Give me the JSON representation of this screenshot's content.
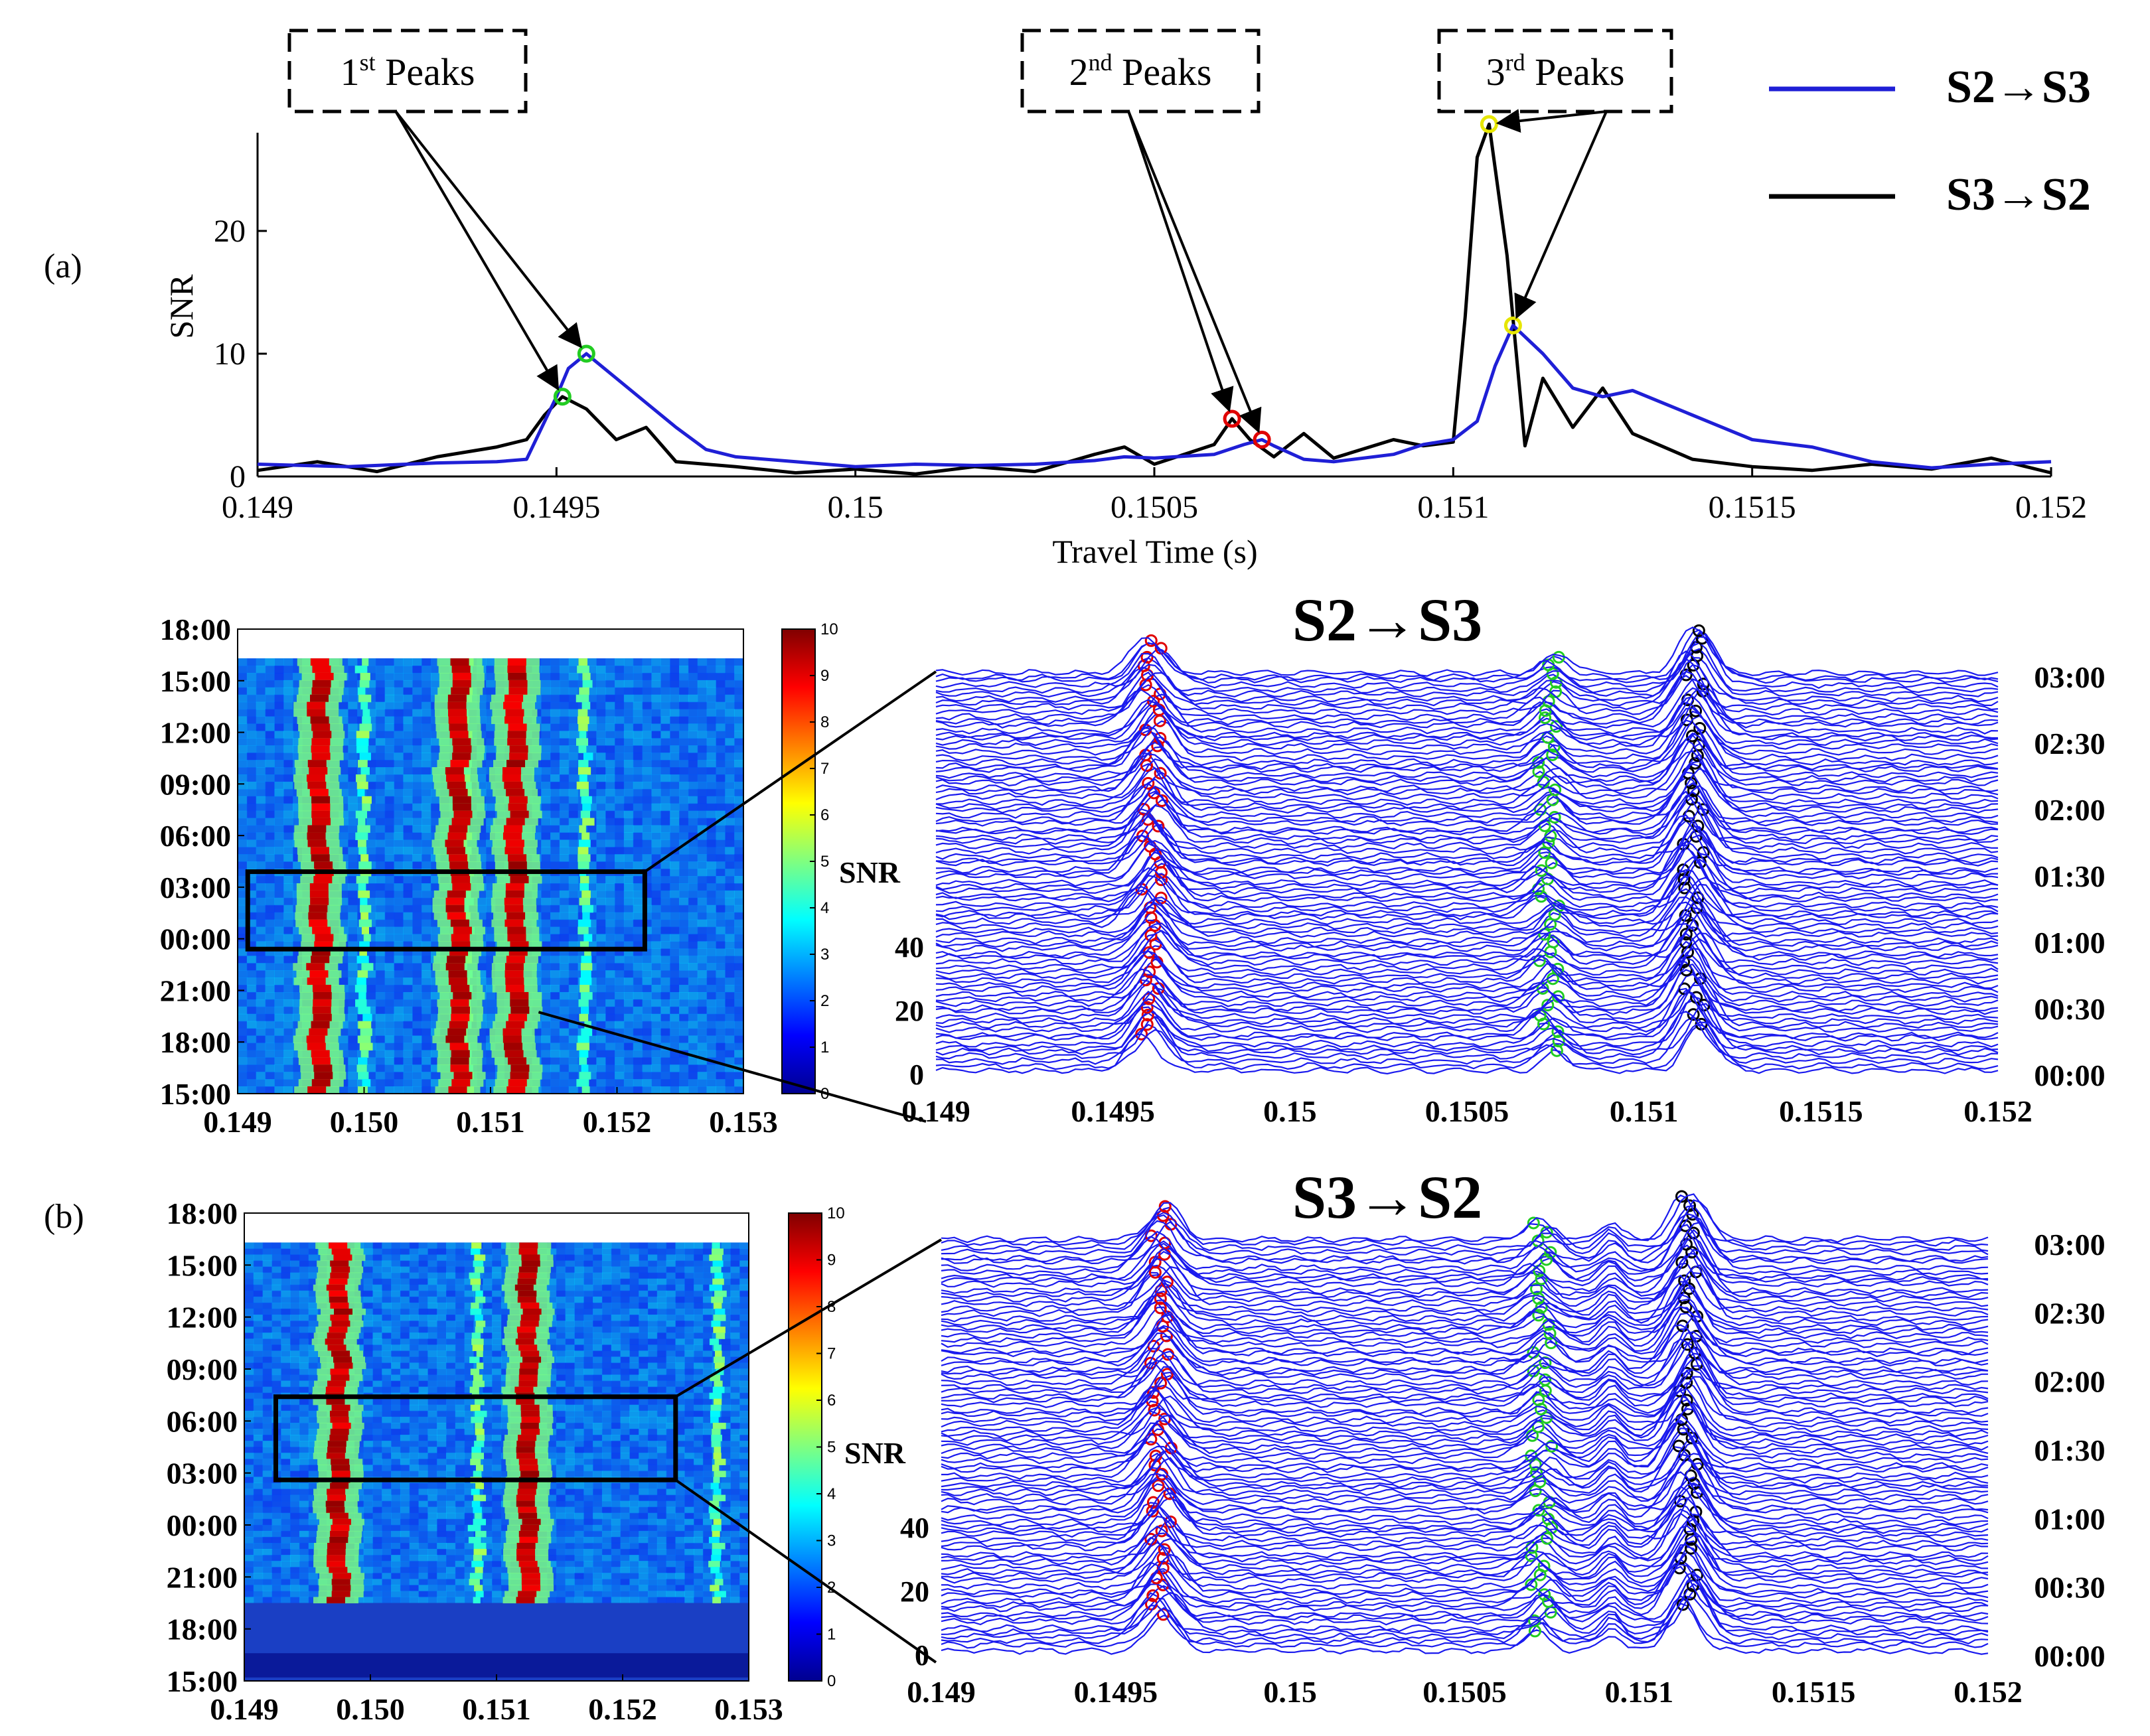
{
  "figure": {
    "panel_a_label": "(a)",
    "panel_b_label": "(b)"
  },
  "chart_data": [
    {
      "id": "a-snr-trace",
      "type": "line",
      "title": "",
      "xlabel": "Travel Time (s)",
      "ylabel": "SNR",
      "xlim": [
        0.149,
        0.152
      ],
      "ylim": [
        0,
        28
      ],
      "xticks": [
        0.149,
        0.1495,
        0.15,
        0.1505,
        0.151,
        0.1515,
        0.152
      ],
      "xtick_labels": [
        "0.149",
        "0.1495",
        "0.15",
        "0.1505",
        "0.151",
        "0.1515",
        "0.152"
      ],
      "yticks": [
        0,
        10,
        20
      ],
      "ytick_labels": [
        "0",
        "10",
        "20"
      ],
      "legend": {
        "position": "top-right",
        "entries": [
          {
            "name": "S2→S3",
            "color": "#1f1fd6"
          },
          {
            "name": "S3→S2",
            "color": "#000000"
          }
        ]
      },
      "series": [
        {
          "name": "S2→S3",
          "color": "#1f1fd6",
          "x": [
            0.149,
            0.14915,
            0.1493,
            0.1494,
            0.14945,
            0.1495,
            0.14952,
            0.14955,
            0.1496,
            0.14965,
            0.1497,
            0.14975,
            0.1498,
            0.1499,
            0.15,
            0.1501,
            0.1502,
            0.1503,
            0.1504,
            0.15045,
            0.1505,
            0.1506,
            0.15065,
            0.15068,
            0.1507,
            0.15075,
            0.1508,
            0.1509,
            0.15095,
            0.151,
            0.15104,
            0.15107,
            0.1511,
            0.15115,
            0.1512,
            0.15125,
            0.1513,
            0.1514,
            0.1515,
            0.1516,
            0.1517,
            0.1518,
            0.1519,
            0.152
          ],
          "y": [
            1.0,
            0.8,
            1.1,
            1.2,
            1.4,
            6.5,
            8.8,
            10.0,
            8.0,
            6.0,
            4.0,
            2.2,
            1.6,
            1.2,
            0.8,
            1.0,
            0.9,
            1.0,
            1.3,
            1.6,
            1.5,
            1.8,
            2.6,
            3.0,
            2.5,
            1.4,
            1.2,
            1.8,
            2.6,
            3.0,
            4.5,
            9.0,
            12.3,
            10.0,
            7.2,
            6.5,
            7.0,
            5.0,
            3.0,
            2.4,
            1.2,
            0.7,
            1.0,
            1.2
          ]
        },
        {
          "name": "S3→S2",
          "color": "#000000",
          "x": [
            0.149,
            0.1491,
            0.1492,
            0.1493,
            0.1494,
            0.14945,
            0.14948,
            0.14951,
            0.14955,
            0.1496,
            0.14965,
            0.1497,
            0.1498,
            0.1499,
            0.15,
            0.1501,
            0.1502,
            0.1503,
            0.1504,
            0.15045,
            0.1505,
            0.1506,
            0.15063,
            0.15066,
            0.1507,
            0.15075,
            0.1508,
            0.1509,
            0.15095,
            0.151,
            0.15102,
            0.15104,
            0.15106,
            0.15109,
            0.15112,
            0.15115,
            0.1512,
            0.15125,
            0.1513,
            0.1514,
            0.1515,
            0.1516,
            0.1517,
            0.1518,
            0.1519,
            0.152
          ],
          "y": [
            0.5,
            1.2,
            0.4,
            1.6,
            2.4,
            3.0,
            5.0,
            6.5,
            5.5,
            3.0,
            4.0,
            1.2,
            0.8,
            0.3,
            0.6,
            0.2,
            0.8,
            0.4,
            1.8,
            2.4,
            1.0,
            2.6,
            4.7,
            3.0,
            1.6,
            3.5,
            1.5,
            3.0,
            2.5,
            2.8,
            13.0,
            26.0,
            28.7,
            18.0,
            2.5,
            8.0,
            4.0,
            7.2,
            3.5,
            1.4,
            0.8,
            0.5,
            1.0,
            0.6,
            1.5,
            0.3
          ]
        }
      ],
      "peak_markers": [
        {
          "series": "S2→S3",
          "x": 0.14955,
          "y": 10.0,
          "color": "#22cc22"
        },
        {
          "series": "S3→S2",
          "x": 0.14951,
          "y": 6.5,
          "color": "#22cc22"
        },
        {
          "series": "S3→S2",
          "x": 0.15063,
          "y": 4.7,
          "color": "#e00000"
        },
        {
          "series": "S2→S3",
          "x": 0.15068,
          "y": 3.0,
          "color": "#e00000"
        },
        {
          "series": "S3→S2",
          "x": 0.15106,
          "y": 28.7,
          "color": "#e6e600"
        },
        {
          "series": "S2→S3",
          "x": 0.1511,
          "y": 12.3,
          "color": "#e6e600"
        }
      ],
      "annotations": [
        {
          "sup": "st",
          "base": "1",
          "rest": "Peaks",
          "targets": [
            [
              0.14951,
              6.5
            ],
            [
              0.14955,
              10.0
            ]
          ]
        },
        {
          "sup": "nd",
          "base": "2",
          "rest": "Peaks",
          "targets": [
            [
              0.15063,
              4.7
            ],
            [
              0.15068,
              3.0
            ]
          ]
        },
        {
          "sup": "rd",
          "base": "3",
          "rest": "Peaks",
          "targets": [
            [
              0.15106,
              28.7
            ],
            [
              0.1511,
              12.3
            ]
          ]
        }
      ]
    },
    {
      "id": "a-heatmap",
      "type": "heatmap",
      "xlim": [
        0.149,
        0.153
      ],
      "xtick_labels": [
        "0.149",
        "0.150",
        "0.151",
        "0.152",
        "0.153"
      ],
      "ytick_labels": [
        "15:00",
        "18:00",
        "21:00",
        "00:00",
        "03:00",
        "06:00",
        "09:00",
        "12:00",
        "15:00",
        "18:00"
      ],
      "time_range_hours": [
        0,
        27
      ],
      "data_end_hour": 25.3,
      "peak_columns": [
        0.14965,
        0.15075,
        0.1512
      ],
      "minor_columns": [
        0.15,
        0.1508,
        0.15175
      ],
      "zoom_box_hours": [
        8.4,
        12.9
      ],
      "zoom_box_x": [
        0.14908,
        0.15222
      ],
      "colorbar": {
        "min": 0,
        "max": 10,
        "tick_labels": [
          "0",
          "1",
          "2",
          "3",
          "4",
          "5",
          "6",
          "7",
          "8",
          "9",
          "10"
        ]
      }
    },
    {
      "id": "a-waterfall",
      "type": "line",
      "title": "S2→S3",
      "xlim": [
        0.149,
        0.152
      ],
      "xtick_labels": [
        "0.149",
        "0.1495",
        "0.15",
        "0.1505",
        "0.151",
        "0.1515",
        "0.152"
      ],
      "ylabel": "SNR",
      "snr_tick_labels": [
        "0",
        "20",
        "40"
      ],
      "time_tick_labels": [
        "00:00",
        "00:30",
        "01:00",
        "01:30",
        "02:00",
        "02:30",
        "03:00"
      ],
      "trace_count": 90,
      "trace_color": "#1a1aee",
      "peak_positions": [
        0.14961,
        0.15073,
        0.15114
      ],
      "marker_colors": [
        "#e00000",
        "#22cc22",
        "#000000"
      ]
    },
    {
      "id": "b-heatmap",
      "type": "heatmap",
      "xlim": [
        0.149,
        0.153
      ],
      "xtick_labels": [
        "0.149",
        "0.150",
        "0.151",
        "0.152",
        "0.153"
      ],
      "ytick_labels": [
        "15:00",
        "18:00",
        "21:00",
        "00:00",
        "03:00",
        "06:00",
        "09:00",
        "12:00",
        "15:00",
        "18:00"
      ],
      "time_range_hours": [
        0,
        27
      ],
      "data_start_hour": 4.5,
      "data_end_hour": 25.3,
      "peak_columns": [
        0.14975,
        0.15125
      ],
      "minor_columns": [
        0.15085,
        0.15275
      ],
      "zoom_box_hours": [
        11.6,
        16.4
      ],
      "zoom_box_x": [
        0.14925,
        0.15242
      ],
      "colorbar": {
        "min": 0,
        "max": 10,
        "tick_labels": [
          "0",
          "1",
          "2",
          "3",
          "4",
          "5",
          "6",
          "7",
          "8",
          "9",
          "10"
        ]
      }
    },
    {
      "id": "b-waterfall",
      "type": "line",
      "title": "S3→S2",
      "xlim": [
        0.149,
        0.152
      ],
      "xtick_labels": [
        "0.149",
        "0.1495",
        "0.15",
        "0.1505",
        "0.151",
        "0.1515",
        "0.152"
      ],
      "ylabel": "SNR",
      "snr_tick_labels": [
        "0",
        "20",
        "40"
      ],
      "time_tick_labels": [
        "00:00",
        "00:30",
        "01:00",
        "01:30",
        "02:00",
        "02:30",
        "03:00"
      ],
      "trace_count": 90,
      "trace_color": "#1a1aee",
      "peak_positions": [
        0.14963,
        0.15072,
        0.15114
      ],
      "secondary_peak": 0.15092,
      "marker_colors": [
        "#e00000",
        "#22cc22",
        "#000000"
      ]
    }
  ]
}
